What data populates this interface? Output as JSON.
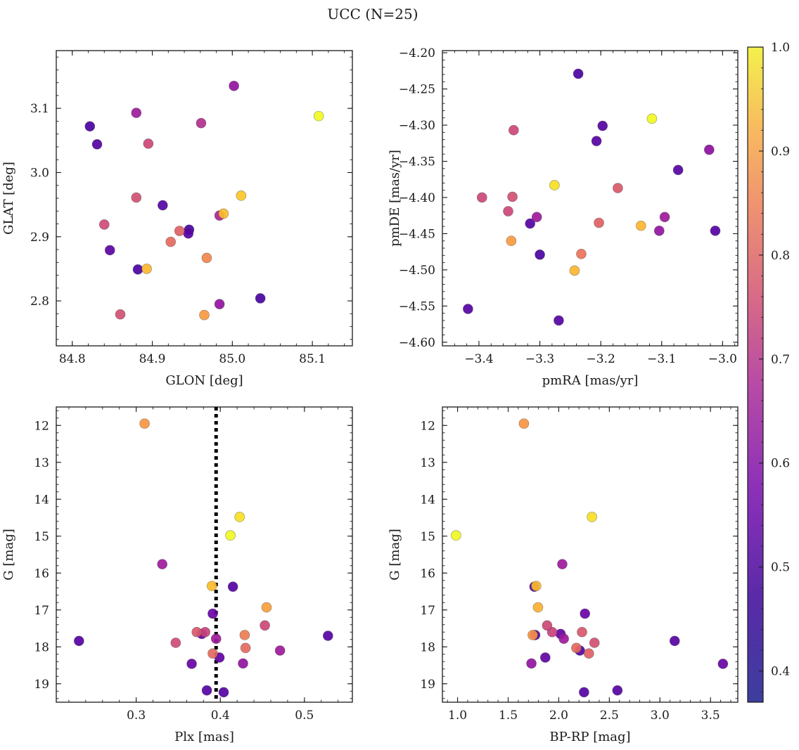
{
  "figure": {
    "title": "UCC (N=25)"
  },
  "colorbar": {
    "min": 0.37,
    "max": 1.0,
    "ticks": [
      0.4,
      0.5,
      0.6,
      0.7,
      0.8,
      0.9,
      1.0
    ],
    "tick_labels": [
      "0.4",
      "0.5",
      "0.6",
      "0.7",
      "0.8",
      "0.9",
      "1.0"
    ],
    "colormap": "plasma"
  },
  "chart_data": [
    {
      "type": "scatter",
      "xlabel": "GLON [deg]",
      "ylabel": "GLAT [deg]",
      "xlim": [
        84.78,
        85.15
      ],
      "ylim": [
        2.73,
        3.19
      ],
      "xticks": [
        84.8,
        84.9,
        85.0,
        85.1
      ],
      "xtick_labels": [
        "84.8",
        "84.9",
        "85.0",
        "85.1"
      ],
      "yticks": [
        2.8,
        2.9,
        3.0,
        3.1
      ],
      "ytick_labels": [
        "2.8",
        "2.9",
        "3.0",
        "3.1"
      ],
      "invert_y": false,
      "points": [
        {
          "x": 84.822,
          "y": 3.072,
          "c": 0.4
        },
        {
          "x": 84.831,
          "y": 3.044,
          "c": 0.42
        },
        {
          "x": 84.88,
          "y": 3.093,
          "c": 0.55
        },
        {
          "x": 84.895,
          "y": 3.045,
          "c": 0.66
        },
        {
          "x": 84.961,
          "y": 3.077,
          "c": 0.6
        },
        {
          "x": 85.002,
          "y": 3.135,
          "c": 0.53
        },
        {
          "x": 85.108,
          "y": 3.088,
          "c": 1.0
        },
        {
          "x": 85.011,
          "y": 2.964,
          "c": 0.92
        },
        {
          "x": 84.88,
          "y": 2.961,
          "c": 0.68
        },
        {
          "x": 84.913,
          "y": 2.949,
          "c": 0.42
        },
        {
          "x": 84.989,
          "y": 2.936,
          "c": 0.9
        },
        {
          "x": 84.984,
          "y": 2.933,
          "c": 0.58
        },
        {
          "x": 84.84,
          "y": 2.919,
          "c": 0.67
        },
        {
          "x": 84.946,
          "y": 2.911,
          "c": 0.4
        },
        {
          "x": 84.945,
          "y": 2.905,
          "c": 0.42
        },
        {
          "x": 84.934,
          "y": 2.909,
          "c": 0.72
        },
        {
          "x": 84.923,
          "y": 2.892,
          "c": 0.74
        },
        {
          "x": 84.847,
          "y": 2.879,
          "c": 0.43
        },
        {
          "x": 84.968,
          "y": 2.867,
          "c": 0.8
        },
        {
          "x": 84.882,
          "y": 2.849,
          "c": 0.4
        },
        {
          "x": 84.893,
          "y": 2.85,
          "c": 0.89
        },
        {
          "x": 85.035,
          "y": 2.804,
          "c": 0.4
        },
        {
          "x": 84.984,
          "y": 2.795,
          "c": 0.53
        },
        {
          "x": 84.86,
          "y": 2.779,
          "c": 0.68
        },
        {
          "x": 84.965,
          "y": 2.778,
          "c": 0.84
        }
      ]
    },
    {
      "type": "scatter",
      "xlabel": "pmRA [mas/yr]",
      "ylabel": "pmDE [mas/yr]",
      "xlim": [
        -3.46,
        -2.975
      ],
      "ylim": [
        -4.605,
        -4.197
      ],
      "xticks": [
        -3.4,
        -3.3,
        -3.2,
        -3.1,
        -3.0
      ],
      "xtick_labels": [
        "−3.4",
        "−3.3",
        "−3.2",
        "−3.1",
        "−3.0"
      ],
      "yticks": [
        -4.6,
        -4.55,
        -4.5,
        -4.45,
        -4.4,
        -4.35,
        -4.3,
        -4.25,
        -4.2
      ],
      "ytick_labels": [
        "−4.60",
        "−4.55",
        "−4.50",
        "−4.45",
        "−4.40",
        "−4.35",
        "−4.30",
        "−4.25",
        "−4.20"
      ],
      "invert_y": false,
      "points": [
        {
          "x": -3.237,
          "y": -4.229,
          "c": 0.4
        },
        {
          "x": -3.116,
          "y": -4.291,
          "c": 1.0
        },
        {
          "x": -3.343,
          "y": -4.307,
          "c": 0.66
        },
        {
          "x": -3.197,
          "y": -4.301,
          "c": 0.42
        },
        {
          "x": -3.207,
          "y": -4.322,
          "c": 0.42
        },
        {
          "x": -3.022,
          "y": -4.334,
          "c": 0.52
        },
        {
          "x": -3.073,
          "y": -4.362,
          "c": 0.42
        },
        {
          "x": -3.276,
          "y": -4.383,
          "c": 0.96
        },
        {
          "x": -3.172,
          "y": -4.387,
          "c": 0.7
        },
        {
          "x": -3.395,
          "y": -4.4,
          "c": 0.66
        },
        {
          "x": -3.345,
          "y": -4.399,
          "c": 0.68
        },
        {
          "x": -3.352,
          "y": -4.419,
          "c": 0.66
        },
        {
          "x": -3.305,
          "y": -4.427,
          "c": 0.55
        },
        {
          "x": -3.095,
          "y": -4.427,
          "c": 0.55
        },
        {
          "x": -3.316,
          "y": -4.436,
          "c": 0.42
        },
        {
          "x": -3.203,
          "y": -4.435,
          "c": 0.72
        },
        {
          "x": -3.134,
          "y": -4.439,
          "c": 0.89
        },
        {
          "x": -3.104,
          "y": -4.446,
          "c": 0.53
        },
        {
          "x": -3.012,
          "y": -4.446,
          "c": 0.42
        },
        {
          "x": -3.347,
          "y": -4.46,
          "c": 0.84
        },
        {
          "x": -3.3,
          "y": -4.479,
          "c": 0.4
        },
        {
          "x": -3.232,
          "y": -4.478,
          "c": 0.76
        },
        {
          "x": -3.243,
          "y": -4.501,
          "c": 0.89
        },
        {
          "x": -3.418,
          "y": -4.554,
          "c": 0.42
        },
        {
          "x": -3.269,
          "y": -4.57,
          "c": 0.42
        }
      ]
    },
    {
      "type": "scatter",
      "xlabel": "Plx [mas]",
      "ylabel": "G [mag]",
      "xlim": [
        0.205,
        0.557
      ],
      "ylim": [
        19.5,
        11.5
      ],
      "xticks": [
        0.3,
        0.4,
        0.5
      ],
      "xtick_labels": [
        "0.3",
        "0.4",
        "0.5"
      ],
      "yticks": [
        12,
        13,
        14,
        15,
        16,
        17,
        18,
        19
      ],
      "ytick_labels": [
        "12",
        "13",
        "14",
        "15",
        "16",
        "17",
        "18",
        "19"
      ],
      "invert_y": true,
      "vline": {
        "x": 0.395,
        "style": "dotted"
      },
      "points": [
        {
          "x": 0.31,
          "y": 11.95,
          "c": 0.83
        },
        {
          "x": 0.423,
          "y": 14.48,
          "c": 0.96
        },
        {
          "x": 0.412,
          "y": 14.98,
          "c": 1.0
        },
        {
          "x": 0.331,
          "y": 15.76,
          "c": 0.55
        },
        {
          "x": 0.39,
          "y": 16.35,
          "c": 0.9
        },
        {
          "x": 0.415,
          "y": 16.37,
          "c": 0.42
        },
        {
          "x": 0.455,
          "y": 16.93,
          "c": 0.85
        },
        {
          "x": 0.391,
          "y": 17.1,
          "c": 0.45
        },
        {
          "x": 0.453,
          "y": 17.42,
          "c": 0.66
        },
        {
          "x": 0.372,
          "y": 17.6,
          "c": 0.7
        },
        {
          "x": 0.382,
          "y": 17.6,
          "c": 0.65
        },
        {
          "x": 0.378,
          "y": 17.65,
          "c": 0.45
        },
        {
          "x": 0.429,
          "y": 17.68,
          "c": 0.78
        },
        {
          "x": 0.528,
          "y": 17.7,
          "c": 0.42
        },
        {
          "x": 0.395,
          "y": 17.78,
          "c": 0.55
        },
        {
          "x": 0.232,
          "y": 17.84,
          "c": 0.42
        },
        {
          "x": 0.347,
          "y": 17.89,
          "c": 0.67
        },
        {
          "x": 0.43,
          "y": 18.03,
          "c": 0.74
        },
        {
          "x": 0.471,
          "y": 18.1,
          "c": 0.55
        },
        {
          "x": 0.391,
          "y": 18.18,
          "c": 0.74
        },
        {
          "x": 0.399,
          "y": 18.29,
          "c": 0.44
        },
        {
          "x": 0.427,
          "y": 18.45,
          "c": 0.53
        },
        {
          "x": 0.366,
          "y": 18.46,
          "c": 0.45
        },
        {
          "x": 0.384,
          "y": 19.18,
          "c": 0.42
        },
        {
          "x": 0.404,
          "y": 19.23,
          "c": 0.42
        }
      ]
    },
    {
      "type": "scatter",
      "xlabel": "BP-RP [mag]",
      "ylabel": "G [mag]",
      "xlim": [
        0.85,
        3.77
      ],
      "ylim": [
        19.5,
        11.5
      ],
      "xticks": [
        1.0,
        1.5,
        2.0,
        2.5,
        3.0,
        3.5
      ],
      "xtick_labels": [
        "1.0",
        "1.5",
        "2.0",
        "2.5",
        "3.0",
        "3.5"
      ],
      "yticks": [
        12,
        13,
        14,
        15,
        16,
        17,
        18,
        19
      ],
      "ytick_labels": [
        "12",
        "13",
        "14",
        "15",
        "16",
        "17",
        "18",
        "19"
      ],
      "invert_y": true,
      "points": [
        {
          "x": 1.656,
          "y": 11.95,
          "c": 0.83
        },
        {
          "x": 2.328,
          "y": 14.48,
          "c": 0.96
        },
        {
          "x": 0.985,
          "y": 14.98,
          "c": 1.0
        },
        {
          "x": 2.035,
          "y": 15.76,
          "c": 0.55
        },
        {
          "x": 1.76,
          "y": 16.37,
          "c": 0.42
        },
        {
          "x": 1.777,
          "y": 16.35,
          "c": 0.9
        },
        {
          "x": 1.795,
          "y": 16.93,
          "c": 0.88
        },
        {
          "x": 2.259,
          "y": 17.1,
          "c": 0.45
        },
        {
          "x": 1.885,
          "y": 17.42,
          "c": 0.66
        },
        {
          "x": 1.935,
          "y": 17.6,
          "c": 0.65
        },
        {
          "x": 2.23,
          "y": 17.6,
          "c": 0.7
        },
        {
          "x": 2.018,
          "y": 17.65,
          "c": 0.45
        },
        {
          "x": 1.767,
          "y": 17.68,
          "c": 0.42
        },
        {
          "x": 1.743,
          "y": 17.68,
          "c": 0.82
        },
        {
          "x": 2.05,
          "y": 17.78,
          "c": 0.55
        },
        {
          "x": 3.146,
          "y": 17.84,
          "c": 0.42
        },
        {
          "x": 2.353,
          "y": 17.89,
          "c": 0.68
        },
        {
          "x": 2.174,
          "y": 18.03,
          "c": 0.74
        },
        {
          "x": 2.209,
          "y": 18.1,
          "c": 0.42
        },
        {
          "x": 2.298,
          "y": 18.18,
          "c": 0.72
        },
        {
          "x": 1.867,
          "y": 18.29,
          "c": 0.44
        },
        {
          "x": 1.73,
          "y": 18.45,
          "c": 0.53
        },
        {
          "x": 3.623,
          "y": 18.46,
          "c": 0.45
        },
        {
          "x": 2.58,
          "y": 19.18,
          "c": 0.42
        },
        {
          "x": 2.25,
          "y": 19.23,
          "c": 0.42
        }
      ]
    }
  ]
}
